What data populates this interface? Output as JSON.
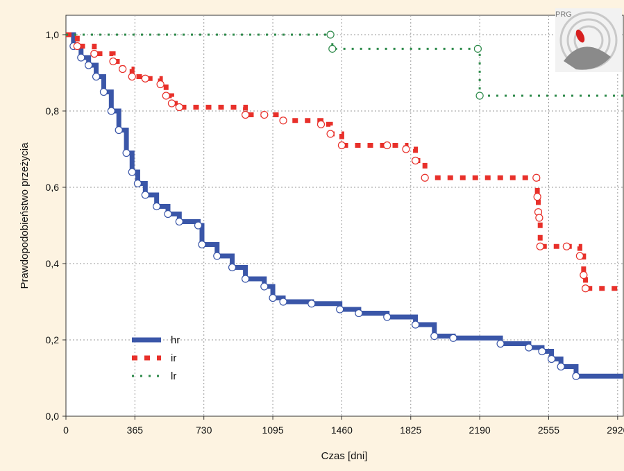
{
  "chart_data": {
    "type": "line",
    "subtype": "kaplan-meier step curves",
    "xlabel": "Czas [dni]",
    "ylabel": "Prawdopodobieństwo przeżycia",
    "xlim": [
      0,
      2950
    ],
    "ylim": [
      0,
      1.0
    ],
    "xticks": [
      0,
      365,
      730,
      1095,
      1460,
      1825,
      2190,
      2555,
      2920
    ],
    "xtick_labels": [
      "0",
      "365",
      "730",
      "1095",
      "1460",
      "1825",
      "2190",
      "2555",
      "2920"
    ],
    "yticks": [
      0,
      0.2,
      0.4,
      0.6,
      0.8,
      1.0
    ],
    "ytick_labels": [
      "0,0",
      "0,2",
      "0,4",
      "0,6",
      "0,8",
      "1,0"
    ],
    "grid": true,
    "legend_position": "lower-left",
    "logo_text": "PRG",
    "series": [
      {
        "name": "hr",
        "color": "#3a56a8",
        "style": "solid",
        "points": [
          [
            0,
            1.0
          ],
          [
            40,
            0.97
          ],
          [
            80,
            0.94
          ],
          [
            120,
            0.92
          ],
          [
            160,
            0.89
          ],
          [
            200,
            0.85
          ],
          [
            240,
            0.8
          ],
          [
            280,
            0.75
          ],
          [
            320,
            0.69
          ],
          [
            350,
            0.64
          ],
          [
            380,
            0.61
          ],
          [
            420,
            0.58
          ],
          [
            480,
            0.55
          ],
          [
            540,
            0.53
          ],
          [
            600,
            0.51
          ],
          [
            700,
            0.5
          ],
          [
            720,
            0.45
          ],
          [
            800,
            0.42
          ],
          [
            880,
            0.39
          ],
          [
            950,
            0.36
          ],
          [
            1050,
            0.34
          ],
          [
            1095,
            0.31
          ],
          [
            1150,
            0.3
          ],
          [
            1300,
            0.295
          ],
          [
            1450,
            0.28
          ],
          [
            1550,
            0.27
          ],
          [
            1700,
            0.26
          ],
          [
            1850,
            0.24
          ],
          [
            1950,
            0.21
          ],
          [
            2050,
            0.205
          ],
          [
            2300,
            0.19
          ],
          [
            2450,
            0.18
          ],
          [
            2520,
            0.17
          ],
          [
            2570,
            0.15
          ],
          [
            2620,
            0.13
          ],
          [
            2700,
            0.105
          ],
          [
            2950,
            0.105
          ]
        ]
      },
      {
        "name": "ir",
        "color": "#e8302a",
        "style": "dashed",
        "points": [
          [
            0,
            1.0
          ],
          [
            60,
            0.97
          ],
          [
            150,
            0.95
          ],
          [
            250,
            0.93
          ],
          [
            300,
            0.91
          ],
          [
            350,
            0.89
          ],
          [
            420,
            0.885
          ],
          [
            500,
            0.87
          ],
          [
            530,
            0.84
          ],
          [
            560,
            0.82
          ],
          [
            600,
            0.81
          ],
          [
            950,
            0.79
          ],
          [
            1050,
            0.79
          ],
          [
            1150,
            0.775
          ],
          [
            1350,
            0.765
          ],
          [
            1400,
            0.74
          ],
          [
            1460,
            0.71
          ],
          [
            1700,
            0.71
          ],
          [
            1800,
            0.7
          ],
          [
            1850,
            0.67
          ],
          [
            1900,
            0.625
          ],
          [
            2490,
            0.625
          ],
          [
            2495,
            0.575
          ],
          [
            2500,
            0.535
          ],
          [
            2505,
            0.52
          ],
          [
            2510,
            0.445
          ],
          [
            2650,
            0.445
          ],
          [
            2720,
            0.42
          ],
          [
            2740,
            0.37
          ],
          [
            2750,
            0.335
          ],
          [
            2950,
            0.335
          ]
        ]
      },
      {
        "name": "lr",
        "color": "#2d8a4a",
        "style": "dotted",
        "points": [
          [
            0,
            1.0
          ],
          [
            1400,
            1.0
          ],
          [
            1410,
            0.963
          ],
          [
            2180,
            0.963
          ],
          [
            2190,
            0.84
          ],
          [
            2950,
            0.84
          ]
        ]
      }
    ]
  }
}
